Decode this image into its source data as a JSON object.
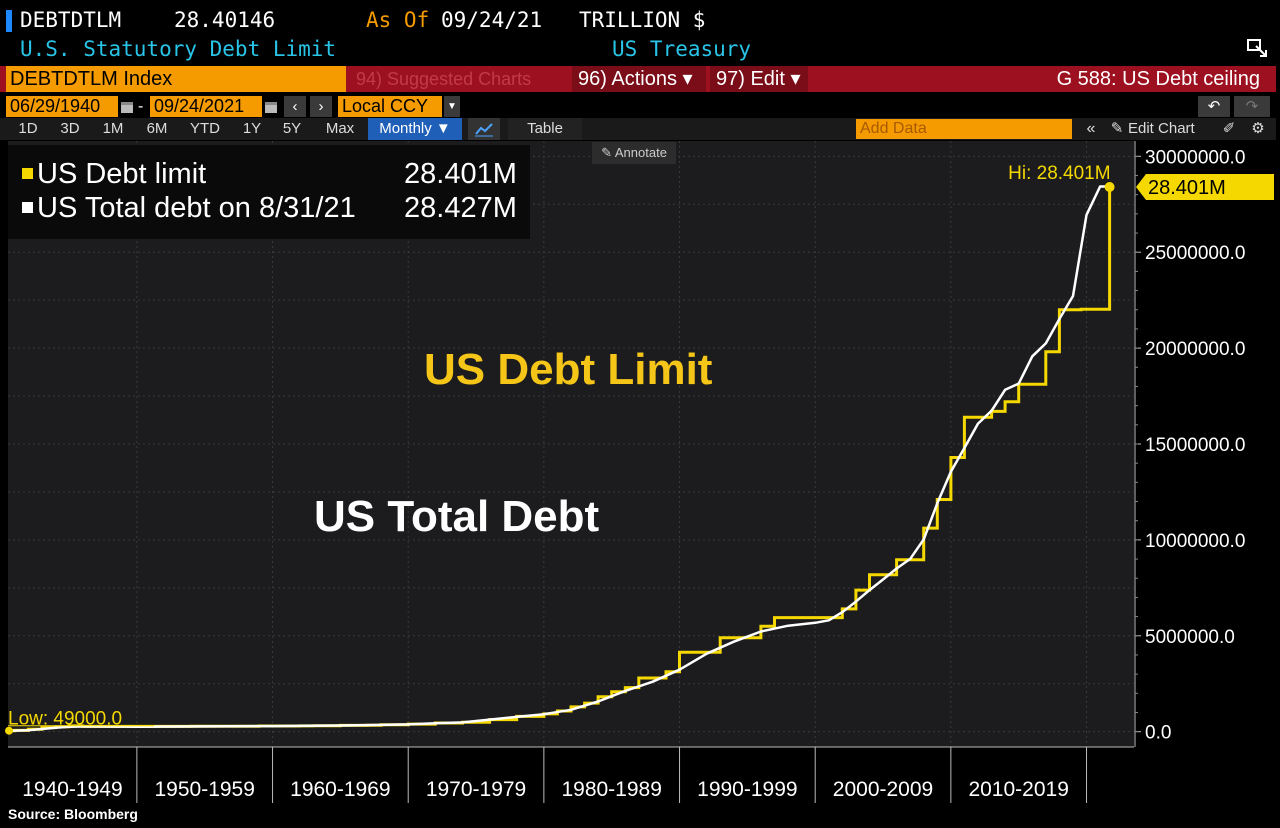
{
  "header": {
    "ticker": "DEBTDTLM",
    "value": "28.40146",
    "as_of_label": "As Of",
    "as_of_date": "09/24/21",
    "units": "TRILLION $",
    "description": "U.S. Statutory Debt Limit",
    "source_name": "US Treasury"
  },
  "toolbar": {
    "security": "DEBTDTLM Index",
    "suggested": "94) Suggested Charts",
    "actions": "96) Actions ▾",
    "edit": "97) Edit ▾",
    "function_title": "G 588: US Debt ceiling",
    "start_date": "06/29/1940",
    "end_date": "09/24/2021",
    "currency": "Local CCY",
    "periods": [
      "1D",
      "3D",
      "1M",
      "6M",
      "YTD",
      "1Y",
      "5Y",
      "Max"
    ],
    "frequency": "Monthly ▼",
    "table_label": "Table",
    "add_data_placeholder": "Add Data",
    "edit_chart": "Edit Chart",
    "annotate": "Annotate"
  },
  "legend": {
    "items": [
      {
        "label": "US Debt limit",
        "value": "28.401M",
        "color": "#f5d800"
      },
      {
        "label": "US Total debt on 8/31/21",
        "value": "28.427M",
        "color": "#ffffff"
      }
    ]
  },
  "overlay": {
    "limit_title": "US Debt Limit",
    "total_title": "US Total Debt"
  },
  "source": "Source: Bloomberg",
  "chart_data": {
    "type": "line",
    "x_unit": "year",
    "xlim": [
      1940.5,
      2023.5
    ],
    "ylim": [
      -800000,
      30800000
    ],
    "y_ticks": [
      {
        "v": 0,
        "label": "0.0"
      },
      {
        "v": 5000000,
        "label": "5000000.0"
      },
      {
        "v": 10000000,
        "label": "10000000.0"
      },
      {
        "v": 15000000,
        "label": "15000000.0"
      },
      {
        "v": 20000000,
        "label": "20000000.0"
      },
      {
        "v": 25000000,
        "label": "25000000.0"
      },
      {
        "v": 30000000,
        "label": "30000000.0"
      }
    ],
    "x_categories": [
      "1940-1949",
      "1950-1959",
      "1960-1969",
      "1970-1979",
      "1980-1989",
      "1990-1999",
      "2000-2009",
      "2010-2019"
    ],
    "annotations": {
      "low": "Low: 49000.0",
      "high": "Hi: 28.401M",
      "last": "28.401M"
    },
    "colors": {
      "limit": "#f5d800",
      "total": "#ffffff"
    },
    "series": [
      {
        "name": "US Debt limit",
        "step": true,
        "points": [
          [
            1940.5,
            49000
          ],
          [
            1941,
            65000
          ],
          [
            1942,
            125000
          ],
          [
            1943,
            210000
          ],
          [
            1944,
            260000
          ],
          [
            1945,
            300000
          ],
          [
            1946,
            275000
          ],
          [
            1954,
            281000
          ],
          [
            1956,
            278000
          ],
          [
            1958,
            283000
          ],
          [
            1959,
            295000
          ],
          [
            1962,
            300000
          ],
          [
            1963,
            309000
          ],
          [
            1965,
            324000
          ],
          [
            1967,
            336000
          ],
          [
            1968,
            358000
          ],
          [
            1970,
            395000
          ],
          [
            1972,
            450000
          ],
          [
            1974,
            495000
          ],
          [
            1976,
            627000
          ],
          [
            1978,
            798000
          ],
          [
            1980,
            925000
          ],
          [
            1981,
            1079000
          ],
          [
            1982,
            1290000
          ],
          [
            1983,
            1490000
          ],
          [
            1984,
            1823000
          ],
          [
            1985,
            2079000
          ],
          [
            1986,
            2300000
          ],
          [
            1987,
            2800000
          ],
          [
            1989,
            3123000
          ],
          [
            1990,
            4145000
          ],
          [
            1993,
            4900000
          ],
          [
            1996,
            5500000
          ],
          [
            1997,
            5950000
          ],
          [
            2002,
            6400000
          ],
          [
            2003,
            7384000
          ],
          [
            2004,
            8184000
          ],
          [
            2006,
            8965000
          ],
          [
            2008,
            10615000
          ],
          [
            2009,
            12104000
          ],
          [
            2010,
            14294000
          ],
          [
            2011,
            16394000
          ],
          [
            2013,
            16699000
          ],
          [
            2014,
            17200000
          ],
          [
            2015,
            18113000
          ],
          [
            2017,
            19809000
          ],
          [
            2018,
            22000000
          ],
          [
            2019.6,
            22030000
          ],
          [
            2021.7,
            28401000
          ]
        ]
      },
      {
        "name": "US Total debt on 8/31/21",
        "step": false,
        "points": [
          [
            1940.5,
            49000
          ],
          [
            1942,
            72000
          ],
          [
            1943,
            137000
          ],
          [
            1944,
            201000
          ],
          [
            1945,
            259000
          ],
          [
            1946,
            269000
          ],
          [
            1950,
            257000
          ],
          [
            1955,
            274000
          ],
          [
            1960,
            291000
          ],
          [
            1965,
            322000
          ],
          [
            1970,
            381000
          ],
          [
            1972,
            436000
          ],
          [
            1974,
            484000
          ],
          [
            1976,
            629000
          ],
          [
            1978,
            772000
          ],
          [
            1980,
            909000
          ],
          [
            1982,
            1142000
          ],
          [
            1984,
            1573000
          ],
          [
            1986,
            2125000
          ],
          [
            1988,
            2602000
          ],
          [
            1990,
            3233000
          ],
          [
            1992,
            4065000
          ],
          [
            1994,
            4693000
          ],
          [
            1996,
            5225000
          ],
          [
            1998,
            5526000
          ],
          [
            2000,
            5674000
          ],
          [
            2001,
            5807000
          ],
          [
            2002,
            6228000
          ],
          [
            2003,
            6783000
          ],
          [
            2004,
            7379000
          ],
          [
            2005,
            7933000
          ],
          [
            2006,
            8507000
          ],
          [
            2007,
            9008000
          ],
          [
            2008,
            10025000
          ],
          [
            2009,
            11910000
          ],
          [
            2010,
            13562000
          ],
          [
            2011,
            14790000
          ],
          [
            2012,
            16066000
          ],
          [
            2013,
            16738000
          ],
          [
            2014,
            17824000
          ],
          [
            2015,
            18151000
          ],
          [
            2016,
            19573000
          ],
          [
            2017,
            20245000
          ],
          [
            2018,
            21516000
          ],
          [
            2019,
            22719000
          ],
          [
            2020,
            26945000
          ],
          [
            2021,
            28428000
          ],
          [
            2021.67,
            28427000
          ]
        ]
      }
    ]
  }
}
